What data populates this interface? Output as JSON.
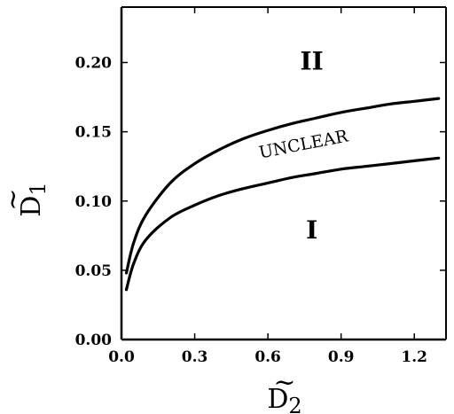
{
  "chart_data": {
    "type": "line",
    "title": "",
    "xlabel": "D2",
    "ylabel": "D1",
    "xlim": [
      0.0,
      1.33
    ],
    "ylim": [
      0.0,
      0.24
    ],
    "x_ticks": [
      "0.0",
      "0.3",
      "0.6",
      "0.9",
      "1.2"
    ],
    "y_ticks": [
      "0.00",
      "0.05",
      "0.10",
      "0.15",
      "0.20"
    ],
    "grid": false,
    "legend": "none",
    "annotations": [
      {
        "text": "II",
        "x": 0.78,
        "y": 0.195
      },
      {
        "text": "UNCLEAR",
        "x": 0.75,
        "y": 0.137
      },
      {
        "text": "I",
        "x": 0.78,
        "y": 0.073
      }
    ],
    "series": [
      {
        "x": [
          0.02,
          0.05,
          0.1,
          0.2,
          0.3,
          0.4,
          0.5,
          0.6,
          0.7,
          0.8,
          0.9,
          1.0,
          1.1,
          1.2,
          1.3
        ],
        "values": [
          0.048,
          0.07,
          0.09,
          0.113,
          0.127,
          0.137,
          0.145,
          0.151,
          0.156,
          0.16,
          0.164,
          0.167,
          0.17,
          0.172,
          0.174
        ]
      },
      {
        "x": [
          0.02,
          0.05,
          0.1,
          0.2,
          0.3,
          0.4,
          0.5,
          0.6,
          0.7,
          0.8,
          0.9,
          1.0,
          1.1,
          1.2,
          1.3
        ],
        "values": [
          0.036,
          0.055,
          0.072,
          0.088,
          0.097,
          0.104,
          0.109,
          0.113,
          0.117,
          0.12,
          0.123,
          0.125,
          0.127,
          0.129,
          0.131
        ]
      }
    ]
  }
}
